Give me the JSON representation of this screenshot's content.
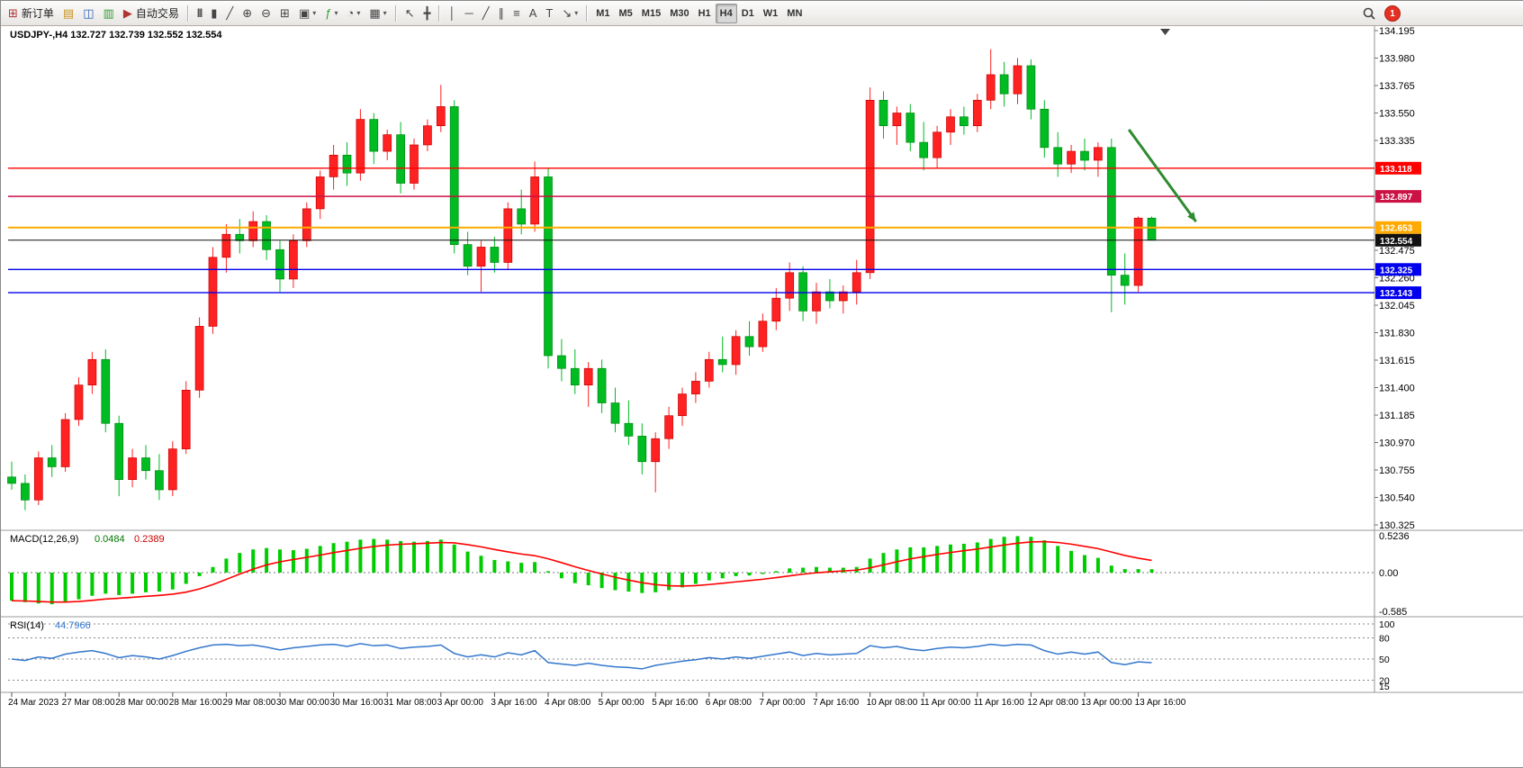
{
  "toolbar": {
    "new_order_label": "新订单",
    "auto_trading_label": "自动交易",
    "icons": {
      "new_order": "⊞",
      "profiles": "▤",
      "market_watch": "◫",
      "navigator": "▥",
      "auto_trading": "▶",
      "chart_bars": "|||",
      "chart_candles": "▮",
      "chart_line": "╱",
      "zoom_in": "⊕",
      "zoom_out": "⊖",
      "tile_windows": "⊞",
      "new_window": "▣",
      "indicators": "ƒ",
      "periods": "◔",
      "templates": "▦",
      "cursor": "↖",
      "crosshair": "╋",
      "vertical_line": "│",
      "horizontal_line": "─",
      "trendline": "╱",
      "channel": "∥",
      "fibonacci": "≡",
      "text": "A",
      "text_label": "T",
      "arrows": "↘",
      "caret": "▾"
    },
    "timeframes": [
      "M1",
      "M5",
      "M15",
      "M30",
      "H1",
      "H4",
      "D1",
      "W1",
      "MN"
    ],
    "active_timeframe": "H4",
    "badge_count": "1"
  },
  "chart": {
    "title": "USDJPY-,H4 132.727 132.739 132.552 132.554"
  },
  "chart_data": {
    "type": "candlestick",
    "symbol": "USDJPY-",
    "timeframe": "H4",
    "ohlc_current": {
      "open": 132.727,
      "high": 132.739,
      "low": 132.552,
      "close": 132.554
    },
    "price_axis": {
      "min": 130.325,
      "max": 134.195,
      "step": 0.215,
      "visible_ticks": [
        "134.195",
        "133.980",
        "133.765",
        "133.550",
        "133.335",
        "132.475",
        "132.260",
        "132.045",
        "131.830",
        "131.615",
        "131.400",
        "131.185",
        "130.970",
        "130.755",
        "130.540",
        "130.325"
      ]
    },
    "up_color": "#ff2222",
    "up_border": "#c80000",
    "down_color": "#00bb22",
    "down_border": "#008811",
    "candles": [
      [
        130.7,
        130.82,
        130.6,
        130.65
      ],
      [
        130.65,
        130.72,
        130.44,
        130.52
      ],
      [
        130.52,
        130.9,
        130.48,
        130.85
      ],
      [
        130.85,
        130.95,
        130.7,
        130.78
      ],
      [
        130.78,
        131.2,
        130.74,
        131.15
      ],
      [
        131.15,
        131.48,
        131.1,
        131.42
      ],
      [
        131.42,
        131.68,
        131.35,
        131.62
      ],
      [
        131.62,
        131.7,
        131.05,
        131.12
      ],
      [
        131.12,
        131.18,
        130.55,
        130.68
      ],
      [
        130.68,
        130.92,
        130.62,
        130.85
      ],
      [
        130.85,
        130.95,
        130.68,
        130.75
      ],
      [
        130.75,
        130.88,
        130.52,
        130.6
      ],
      [
        130.6,
        130.98,
        130.55,
        130.92
      ],
      [
        130.92,
        131.45,
        130.88,
        131.38
      ],
      [
        131.38,
        131.95,
        131.32,
        131.88
      ],
      [
        131.88,
        132.5,
        131.82,
        132.42
      ],
      [
        132.42,
        132.68,
        132.3,
        132.6
      ],
      [
        132.6,
        132.72,
        132.45,
        132.55
      ],
      [
        132.55,
        132.78,
        132.5,
        132.7
      ],
      [
        132.7,
        132.75,
        132.4,
        132.48
      ],
      [
        132.48,
        132.55,
        132.15,
        132.25
      ],
      [
        132.25,
        132.6,
        132.18,
        132.55
      ],
      [
        132.55,
        132.85,
        132.5,
        132.8
      ],
      [
        132.8,
        133.1,
        132.72,
        133.05
      ],
      [
        133.05,
        133.3,
        132.95,
        133.22
      ],
      [
        133.22,
        133.32,
        132.98,
        133.08
      ],
      [
        133.08,
        133.58,
        133.02,
        133.5
      ],
      [
        133.5,
        133.55,
        133.15,
        133.25
      ],
      [
        133.25,
        133.42,
        133.18,
        133.38
      ],
      [
        133.38,
        133.48,
        132.92,
        133.0
      ],
      [
        133.0,
        133.35,
        132.95,
        133.3
      ],
      [
        133.3,
        133.5,
        133.25,
        133.45
      ],
      [
        133.45,
        133.77,
        133.4,
        133.6
      ],
      [
        133.6,
        133.65,
        132.45,
        132.52
      ],
      [
        132.52,
        132.62,
        132.28,
        132.35
      ],
      [
        132.35,
        132.55,
        132.15,
        132.5
      ],
      [
        132.5,
        132.58,
        132.3,
        132.38
      ],
      [
        132.38,
        132.85,
        132.32,
        132.8
      ],
      [
        132.8,
        132.95,
        132.6,
        132.68
      ],
      [
        132.68,
        133.17,
        132.62,
        133.05
      ],
      [
        133.05,
        133.12,
        131.55,
        131.65
      ],
      [
        131.65,
        131.78,
        131.45,
        131.55
      ],
      [
        131.55,
        131.7,
        131.35,
        131.42
      ],
      [
        131.42,
        131.6,
        131.25,
        131.55
      ],
      [
        131.55,
        131.62,
        131.2,
        131.28
      ],
      [
        131.28,
        131.4,
        131.05,
        131.12
      ],
      [
        131.12,
        131.3,
        130.95,
        131.02
      ],
      [
        131.02,
        131.12,
        130.72,
        130.82
      ],
      [
        130.82,
        131.05,
        130.58,
        131.0
      ],
      [
        131.0,
        131.25,
        130.92,
        131.18
      ],
      [
        131.18,
        131.4,
        131.1,
        131.35
      ],
      [
        131.35,
        131.52,
        131.28,
        131.45
      ],
      [
        131.45,
        131.68,
        131.4,
        131.62
      ],
      [
        131.62,
        131.8,
        131.52,
        131.58
      ],
      [
        131.58,
        131.85,
        131.5,
        131.8
      ],
      [
        131.8,
        131.92,
        131.65,
        131.72
      ],
      [
        131.72,
        131.98,
        131.68,
        131.92
      ],
      [
        131.92,
        132.18,
        131.85,
        132.1
      ],
      [
        132.1,
        132.38,
        132.0,
        132.3
      ],
      [
        132.3,
        132.35,
        131.92,
        132.0
      ],
      [
        132.0,
        132.22,
        131.9,
        132.15
      ],
      [
        132.15,
        132.25,
        132.02,
        132.08
      ],
      [
        132.08,
        132.2,
        131.98,
        132.15
      ],
      [
        132.15,
        132.4,
        132.05,
        132.3
      ],
      [
        132.3,
        133.75,
        132.25,
        133.65
      ],
      [
        133.65,
        133.72,
        133.35,
        133.45
      ],
      [
        133.45,
        133.6,
        133.3,
        133.55
      ],
      [
        133.55,
        133.62,
        133.25,
        133.32
      ],
      [
        133.32,
        133.48,
        133.1,
        133.2
      ],
      [
        133.2,
        133.45,
        133.12,
        133.4
      ],
      [
        133.4,
        133.58,
        133.3,
        133.52
      ],
      [
        133.52,
        133.6,
        133.38,
        133.45
      ],
      [
        133.45,
        133.7,
        133.4,
        133.65
      ],
      [
        133.65,
        134.05,
        133.58,
        133.85
      ],
      [
        133.85,
        133.95,
        133.6,
        133.7
      ],
      [
        133.7,
        133.98,
        133.62,
        133.92
      ],
      [
        133.92,
        133.97,
        133.5,
        133.58
      ],
      [
        133.58,
        133.65,
        133.2,
        133.28
      ],
      [
        133.28,
        133.4,
        133.05,
        133.15
      ],
      [
        133.15,
        133.3,
        133.08,
        133.25
      ],
      [
        133.25,
        133.35,
        133.1,
        133.18
      ],
      [
        133.18,
        133.32,
        133.05,
        133.28
      ],
      [
        133.28,
        133.35,
        131.99,
        132.28
      ],
      [
        132.28,
        132.45,
        132.05,
        132.2
      ],
      [
        132.2,
        132.74,
        132.15,
        132.727
      ],
      [
        132.727,
        132.739,
        132.552,
        132.554
      ]
    ],
    "time_labels": [
      "24 Mar 2023",
      "27 Mar 08:00",
      "28 Mar 00:00",
      "28 Mar 16:00",
      "29 Mar 08:00",
      "30 Mar 00:00",
      "30 Mar 16:00",
      "31 Mar 08:00",
      "3 Apr 00:00",
      "3 Apr 16:00",
      "4 Apr 08:00",
      "5 Apr 00:00",
      "5 Apr 16:00",
      "6 Apr 08:00",
      "7 Apr 00:00",
      "7 Apr 16:00",
      "10 Apr 08:00",
      "11 Apr 00:00",
      "11 Apr 16:00",
      "12 Apr 08:00",
      "13 Apr 00:00",
      "13 Apr 16:00"
    ],
    "candles_per_label": 4,
    "hlines": [
      {
        "label": "133.118",
        "price": 133.118,
        "color": "#ff0000",
        "width": 1.4
      },
      {
        "label": "132.897",
        "price": 132.897,
        "color": "#cc1144",
        "width": 1.4
      },
      {
        "label": "132.653",
        "price": 132.653,
        "color": "#ffaa00",
        "width": 2
      },
      {
        "label": "132.554",
        "price": 132.554,
        "color": "#111111",
        "width": 1
      },
      {
        "label": "132.325",
        "price": 132.325,
        "color": "#0000ee",
        "width": 1.4
      },
      {
        "label": "132.143",
        "price": 132.143,
        "color": "#0000ee",
        "width": 1.4
      }
    ],
    "arrow": {
      "from_candle": 83.3,
      "from_price": 133.42,
      "to_candle": 88.3,
      "to_price": 132.7,
      "color": "#2e8b2e"
    },
    "macd": {
      "title": "MACD(12,26,9)",
      "main_value": "0.0484",
      "signal_value": "0.2389",
      "scale_max": "0.5236",
      "scale_zero": "0.00",
      "scale_min": "-0.585",
      "histogram_color": "#00cc00",
      "signal_color": "#ff0000",
      "histogram": [
        -0.4,
        -0.42,
        -0.44,
        -0.45,
        -0.42,
        -0.38,
        -0.33,
        -0.3,
        -0.32,
        -0.3,
        -0.28,
        -0.27,
        -0.24,
        -0.16,
        -0.05,
        0.08,
        0.2,
        0.28,
        0.33,
        0.35,
        0.33,
        0.32,
        0.34,
        0.38,
        0.42,
        0.44,
        0.47,
        0.48,
        0.47,
        0.45,
        0.44,
        0.45,
        0.47,
        0.4,
        0.3,
        0.24,
        0.18,
        0.16,
        0.14,
        0.15,
        0.02,
        -0.08,
        -0.15,
        -0.18,
        -0.22,
        -0.25,
        -0.27,
        -0.29,
        -0.28,
        -0.25,
        -0.21,
        -0.16,
        -0.11,
        -0.08,
        -0.05,
        -0.04,
        -0.02,
        0.02,
        0.06,
        0.07,
        0.08,
        0.07,
        0.07,
        0.08,
        0.2,
        0.28,
        0.33,
        0.36,
        0.36,
        0.38,
        0.4,
        0.41,
        0.43,
        0.48,
        0.51,
        0.52,
        0.51,
        0.46,
        0.38,
        0.31,
        0.25,
        0.21,
        0.1,
        0.05,
        0.05,
        0.0484
      ]
    },
    "rsi": {
      "title": "RSI(14)",
      "value": "44.7966",
      "levels": [
        100,
        80,
        50,
        20
      ],
      "scale_labels": [
        "100",
        "80",
        "50",
        "20",
        "15"
      ],
      "line_color": "#3377cc",
      "values": [
        50,
        48,
        53,
        51,
        57,
        60,
        62,
        58,
        52,
        55,
        53,
        50,
        55,
        61,
        66,
        70,
        71,
        69,
        70,
        67,
        63,
        66,
        68,
        70,
        71,
        68,
        72,
        69,
        70,
        65,
        67,
        68,
        70,
        58,
        53,
        56,
        53,
        59,
        56,
        62,
        45,
        43,
        41,
        44,
        41,
        39,
        38,
        36,
        41,
        44,
        47,
        49,
        52,
        50,
        53,
        51,
        54,
        57,
        60,
        55,
        58,
        56,
        57,
        58,
        69,
        66,
        68,
        64,
        62,
        65,
        67,
        66,
        68,
        71,
        69,
        71,
        70,
        62,
        57,
        60,
        57,
        60,
        45,
        42,
        46,
        44.7966
      ]
    }
  }
}
